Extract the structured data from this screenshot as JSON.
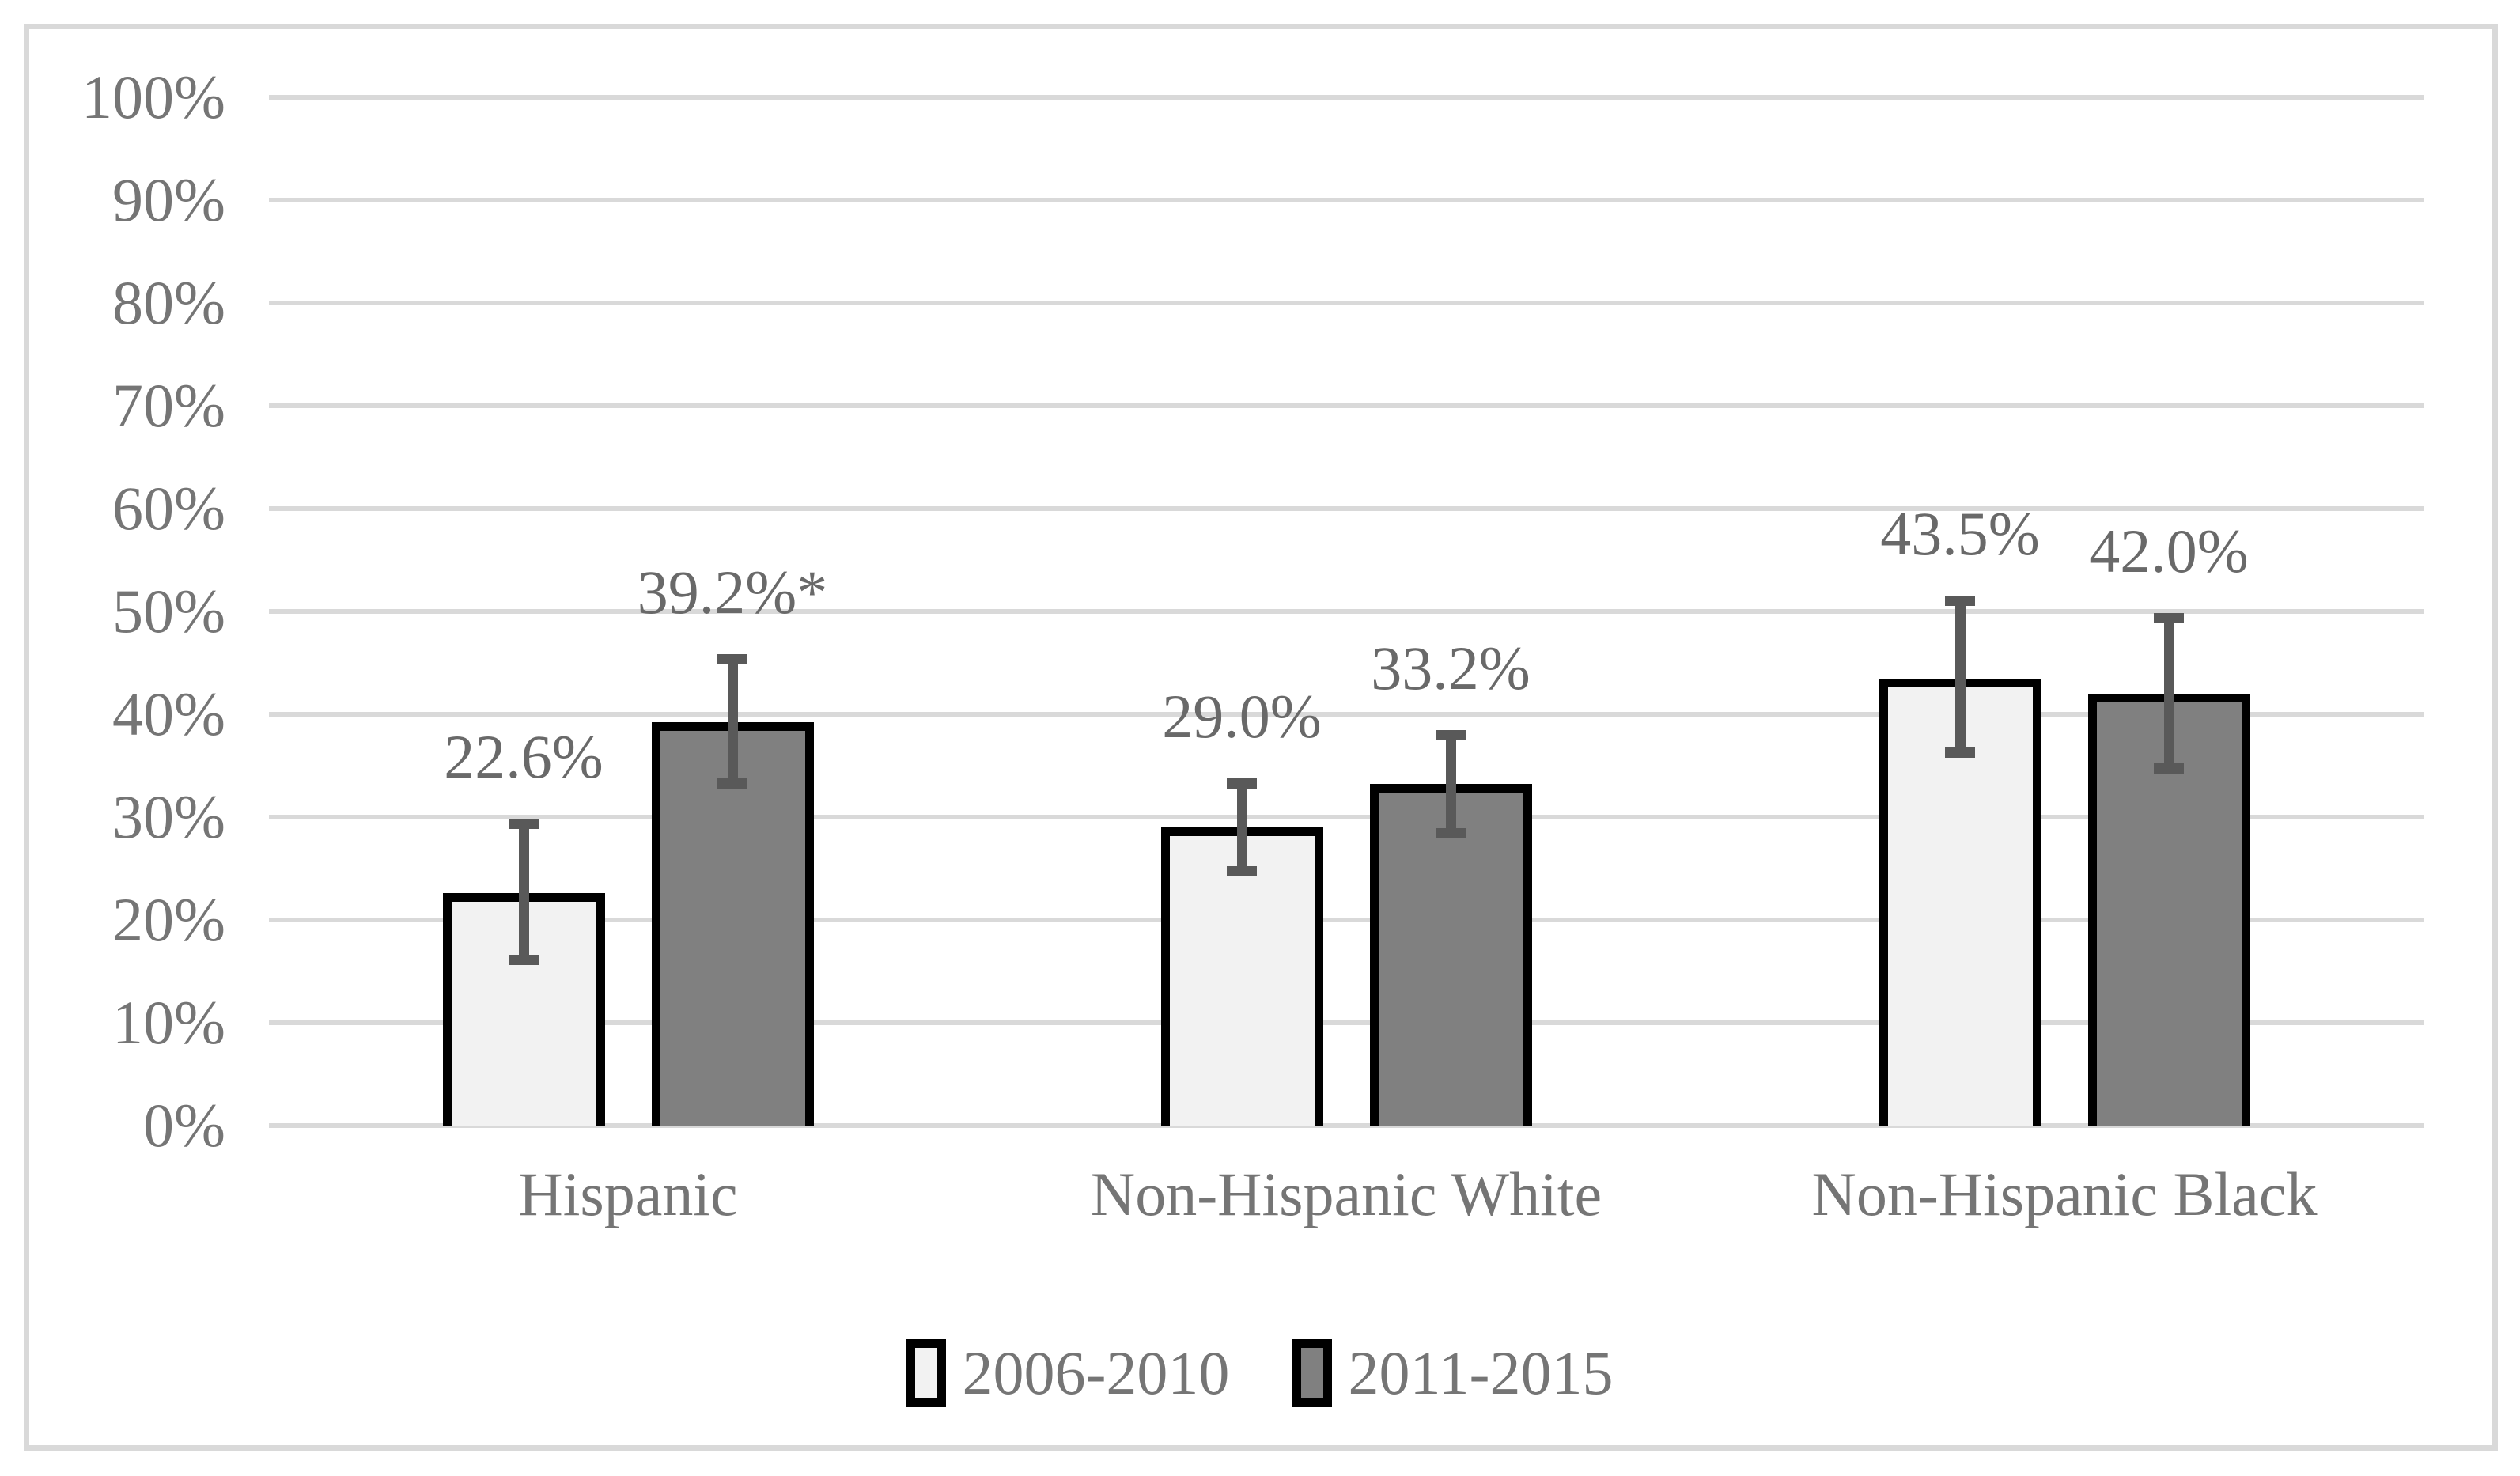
{
  "figure": {
    "background": "#ffffff",
    "frame_color": "#d9d9d9"
  },
  "chart_data": {
    "type": "bar",
    "title": "",
    "xlabel": "",
    "ylabel": "",
    "categories": [
      "Hispanic",
      "Non-Hispanic White",
      "Non-Hispanic Black"
    ],
    "series": [
      {
        "name": "2006-2010",
        "fill": "#f2f2f2",
        "values": [
          22.6,
          29.0,
          43.5
        ],
        "data_labels": [
          "22.6%",
          "29.0%",
          "43.5%"
        ],
        "error_low": [
          16.1,
          24.7,
          36.2
        ],
        "error_high": [
          29.3,
          33.2,
          51.0
        ]
      },
      {
        "name": "2011-2015",
        "fill": "#808080",
        "values": [
          39.2,
          33.2,
          42.0
        ],
        "data_labels": [
          "39.2%*",
          "33.2%",
          "42.0%"
        ],
        "error_low": [
          33.2,
          28.4,
          34.7
        ],
        "error_high": [
          45.3,
          37.9,
          49.3
        ]
      }
    ],
    "ylim": [
      0,
      100
    ],
    "ytick_step": 10,
    "ytick_labels": [
      "0%",
      "10%",
      "20%",
      "30%",
      "40%",
      "50%",
      "60%",
      "70%",
      "80%",
      "90%",
      "100%"
    ],
    "grid": true,
    "legend_position": "bottom",
    "colors": {
      "gridline": "#d9d9d9",
      "bar_outline": "#000000",
      "error_bar": "#595959",
      "axis_text": "#757575",
      "data_label_text": "#696969"
    }
  }
}
